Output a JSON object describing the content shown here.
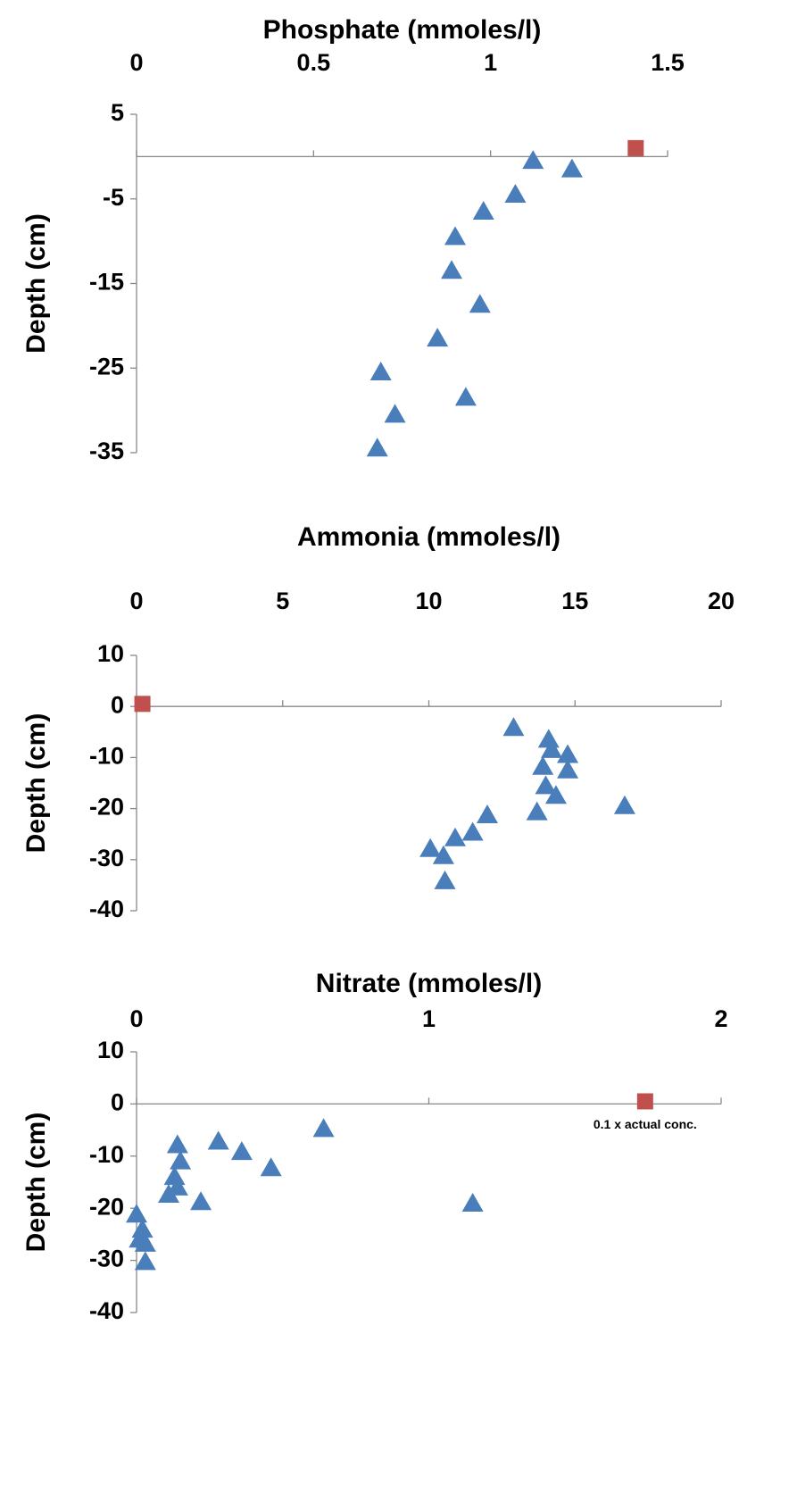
{
  "chart_data": [
    {
      "type": "scatter",
      "x_label": "Phosphate (mmoles/l)",
      "y_label": "Depth (cm)",
      "xlim": [
        0,
        1.5
      ],
      "xticks": [
        0,
        0.5,
        1,
        1.5
      ],
      "ylim": [
        -35,
        5
      ],
      "yticks": [
        5,
        -5,
        -15,
        -25,
        -35
      ],
      "series": [
        {
          "marker": "triangle",
          "color": "#4a7ebb",
          "x": [
            1.12,
            1.23,
            1.07,
            0.98,
            0.9,
            0.89,
            0.97,
            0.85,
            0.69,
            0.93,
            0.73,
            0.68
          ],
          "values": [
            -0.5,
            -1.5,
            -4.5,
            -6.5,
            -9.5,
            -13.5,
            -17.5,
            -21.5,
            -25.5,
            -28.5,
            -30.5,
            -34.5
          ]
        },
        {
          "marker": "square",
          "color": "#c0504d",
          "x": [
            1.41
          ],
          "values": [
            1
          ]
        }
      ]
    },
    {
      "type": "scatter",
      "x_label": "Ammonia (mmoles/l)",
      "y_label": "Depth (cm)",
      "xlim": [
        0,
        20
      ],
      "xticks": [
        0,
        5,
        10,
        15,
        20
      ],
      "ylim": [
        -40,
        10
      ],
      "yticks": [
        10,
        0,
        -10,
        -20,
        -30,
        -40
      ],
      "series": [
        {
          "marker": "triangle",
          "color": "#4a7ebb",
          "x": [
            12.9,
            14.1,
            14.2,
            14.75,
            13.9,
            14.75,
            14.0,
            14.35,
            13.7,
            16.7,
            12.0,
            11.5,
            10.9,
            10.05,
            10.5,
            10.55
          ],
          "values": [
            -4.2,
            -6.5,
            -8.5,
            -9.5,
            -11.8,
            -12.5,
            -15.6,
            -17.5,
            -20.7,
            -19.5,
            -21.3,
            -24.7,
            -25.8,
            -27.9,
            -29.3,
            -34.2
          ]
        },
        {
          "marker": "square",
          "color": "#c0504d",
          "x": [
            0.2
          ],
          "values": [
            0.5
          ]
        }
      ]
    },
    {
      "type": "scatter",
      "x_label": "Nitrate (mmoles/l)",
      "y_label": "Depth (cm)",
      "xlim": [
        0,
        2
      ],
      "xticks": [
        0,
        1,
        2
      ],
      "ylim": [
        -40,
        10
      ],
      "yticks": [
        10,
        0,
        -10,
        -20,
        -30,
        -40
      ],
      "annotation": "0.1 x  actual conc.",
      "series": [
        {
          "marker": "triangle",
          "color": "#4a7ebb",
          "x": [
            0.64,
            0.28,
            0.14,
            0.36,
            0.15,
            0.46,
            0.13,
            0.14,
            0.11,
            0.22,
            1.15,
            0.0,
            0.02,
            0.01,
            0.03,
            0.03
          ],
          "values": [
            -4.8,
            -7.2,
            -7.9,
            -9.2,
            -11,
            -12.3,
            -14,
            -16,
            -17.4,
            -18.8,
            -19.1,
            -21.2,
            -24.1,
            -26,
            -26.8,
            -30.3
          ]
        },
        {
          "marker": "square",
          "color": "#c0504d",
          "x": [
            1.74
          ],
          "values": [
            0.5
          ]
        }
      ]
    }
  ]
}
